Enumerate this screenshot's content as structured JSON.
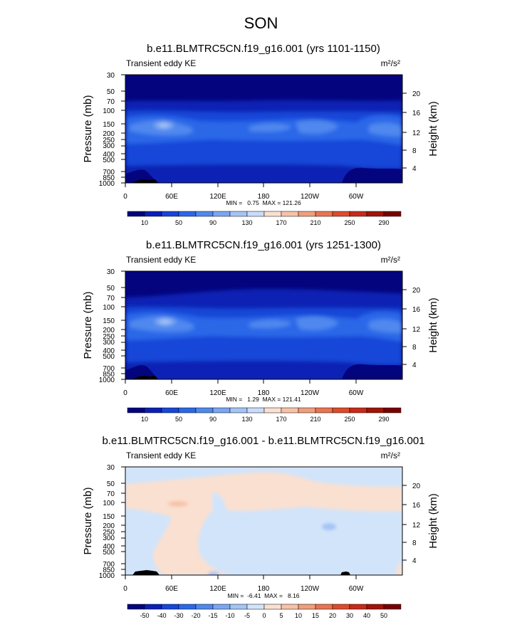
{
  "title": "SON",
  "chart_data": [
    {
      "type": "heatmap",
      "title": "b.e11.BLMTRC5CN.f19_g16.001 (yrs 1101-1150)",
      "subtitle_left": "Transient eddy KE",
      "units": "m²/s²",
      "ylabel": "Pressure (mb)",
      "y2label": "Height (km)",
      "x_ticks": [
        "0",
        "60E",
        "120E",
        "180",
        "120W",
        "60W"
      ],
      "y_ticks": [
        "30",
        "50",
        "70",
        "100",
        "150",
        "200",
        "250",
        "300",
        "400",
        "500",
        "700",
        "850",
        "1000"
      ],
      "y2_ticks": [
        "20",
        "16",
        "12",
        "8",
        "4"
      ],
      "stats": "MIN =   0.75  MAX = 121.26",
      "colorbar_labels": [
        "10",
        "50",
        "90",
        "130",
        "170",
        "210",
        "250",
        "290"
      ],
      "colorbar_colors": [
        "#04047e",
        "#0a20b4",
        "#1746d8",
        "#2a68e8",
        "#5088ee",
        "#7aa6f2",
        "#a5c4f6",
        "#cadcfa",
        "#fae0d0",
        "#f7c2a8",
        "#f19e7c",
        "#ea7450",
        "#e04a2c",
        "#c82a18",
        "#a01408",
        "#7a0000"
      ]
    },
    {
      "type": "heatmap",
      "title": "b.e11.BLMTRC5CN.f19_g16.001 (yrs 1251-1300)",
      "subtitle_left": "Transient eddy KE",
      "units": "m²/s²",
      "ylabel": "Pressure (mb)",
      "y2label": "Height (km)",
      "x_ticks": [
        "0",
        "60E",
        "120E",
        "180",
        "120W",
        "60W"
      ],
      "y_ticks": [
        "30",
        "50",
        "70",
        "100",
        "150",
        "200",
        "250",
        "300",
        "400",
        "500",
        "700",
        "850",
        "1000"
      ],
      "y2_ticks": [
        "20",
        "16",
        "12",
        "8",
        "4"
      ],
      "stats": "MIN =   1.29  MAX = 121.41",
      "colorbar_labels": [
        "10",
        "50",
        "90",
        "130",
        "170",
        "210",
        "250",
        "290"
      ],
      "colorbar_colors": [
        "#04047e",
        "#0a20b4",
        "#1746d8",
        "#2a68e8",
        "#5088ee",
        "#7aa6f2",
        "#a5c4f6",
        "#cadcfa",
        "#fae0d0",
        "#f7c2a8",
        "#f19e7c",
        "#ea7450",
        "#e04a2c",
        "#c82a18",
        "#a01408",
        "#7a0000"
      ]
    },
    {
      "type": "heatmap",
      "title": "b.e11.BLMTRC5CN.f19_g16.001 - b.e11.BLMTRC5CN.f19_g16.001",
      "subtitle_left": "Transient eddy KE",
      "units": "m²/s²",
      "ylabel": "Pressure (mb)",
      "y2label": "Height (km)",
      "x_ticks": [
        "0",
        "60E",
        "120E",
        "180",
        "120W",
        "60W"
      ],
      "y_ticks": [
        "30",
        "50",
        "70",
        "100",
        "150",
        "200",
        "250",
        "300",
        "400",
        "500",
        "700",
        "850",
        "1000"
      ],
      "y2_ticks": [
        "20",
        "16",
        "12",
        "8",
        "4"
      ],
      "stats": "MIN =  -6.41  MAX =   8.16",
      "colorbar_labels": [
        "-50",
        "-40",
        "-30",
        "-20",
        "-15",
        "-10",
        "-5",
        "0",
        "5",
        "10",
        "15",
        "20",
        "30",
        "40",
        "50"
      ],
      "colorbar_colors": [
        "#04047e",
        "#0a20b4",
        "#1746d8",
        "#2a68e8",
        "#5088ee",
        "#7aa6f2",
        "#a5c4f6",
        "#d2e4fa",
        "#fae0d0",
        "#f7c2a8",
        "#f19e7c",
        "#ea7450",
        "#e04a2c",
        "#c82a18",
        "#a01408",
        "#7a0000"
      ]
    }
  ]
}
